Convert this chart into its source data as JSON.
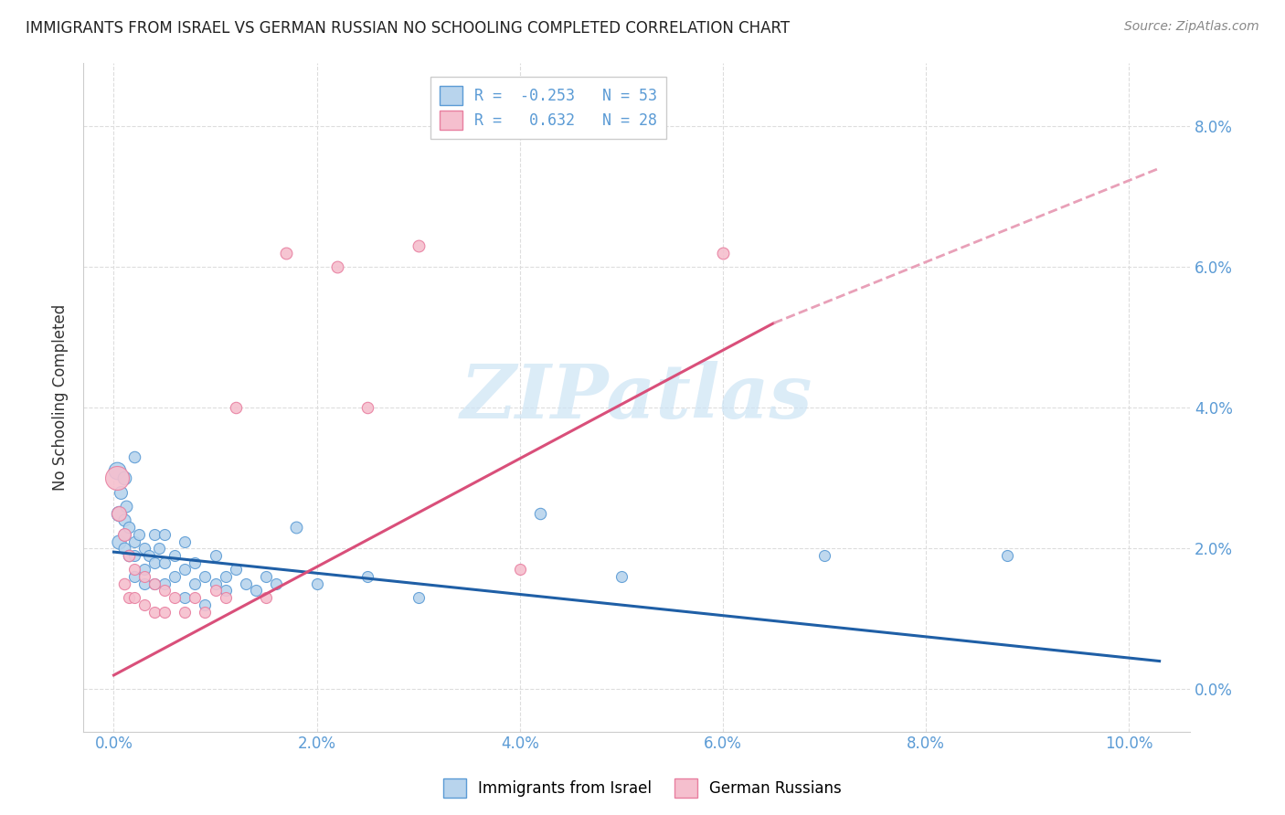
{
  "title": "IMMIGRANTS FROM ISRAEL VS GERMAN RUSSIAN NO SCHOOLING COMPLETED CORRELATION CHART",
  "source": "Source: ZipAtlas.com",
  "ylabel": "No Schooling Completed",
  "x_ticks": [
    0.0,
    0.02,
    0.04,
    0.06,
    0.08,
    0.1
  ],
  "x_tick_labels": [
    "0.0%",
    "2.0%",
    "4.0%",
    "6.0%",
    "8.0%",
    "10.0%"
  ],
  "y_ticks": [
    0.0,
    0.02,
    0.04,
    0.06,
    0.08
  ],
  "y_tick_labels_right": [
    "0.0%",
    "2.0%",
    "4.0%",
    "6.0%",
    "8.0%"
  ],
  "xlim": [
    -0.003,
    0.106
  ],
  "ylim": [
    -0.006,
    0.089
  ],
  "legend_r1": "R = -0.253",
  "legend_n1": "N = 53",
  "legend_r2": "R =  0.632",
  "legend_n2": "N = 28",
  "legend_label1": "Immigrants from Israel",
  "legend_label2": "German Russians",
  "blue_fill": "#b8d4ed",
  "blue_edge": "#5b9bd5",
  "pink_fill": "#f5bfce",
  "pink_edge": "#e87fa0",
  "blue_line_color": "#1f5fa6",
  "pink_line_color": "#d94f7a",
  "pink_dash_color": "#e8a0b8",
  "trendline_blue_x0": 0.0,
  "trendline_blue_y0": 0.0195,
  "trendline_blue_x1": 0.103,
  "trendline_blue_y1": 0.004,
  "trendline_pink_solid_x0": 0.0,
  "trendline_pink_solid_y0": 0.002,
  "trendline_pink_solid_x1": 0.065,
  "trendline_pink_solid_y1": 0.052,
  "trendline_pink_dash_x0": 0.065,
  "trendline_pink_dash_y0": 0.052,
  "trendline_pink_dash_x1": 0.103,
  "trendline_pink_dash_y1": 0.074,
  "blue_points": [
    [
      0.0003,
      0.031,
      180
    ],
    [
      0.0005,
      0.025,
      140
    ],
    [
      0.0005,
      0.021,
      120
    ],
    [
      0.0007,
      0.028,
      100
    ],
    [
      0.001,
      0.03,
      110
    ],
    [
      0.001,
      0.024,
      90
    ],
    [
      0.001,
      0.022,
      90
    ],
    [
      0.001,
      0.02,
      85
    ],
    [
      0.0012,
      0.026,
      85
    ],
    [
      0.0015,
      0.023,
      80
    ],
    [
      0.0015,
      0.019,
      80
    ],
    [
      0.002,
      0.033,
      80
    ],
    [
      0.002,
      0.021,
      75
    ],
    [
      0.002,
      0.019,
      75
    ],
    [
      0.002,
      0.016,
      75
    ],
    [
      0.0025,
      0.022,
      75
    ],
    [
      0.003,
      0.02,
      75
    ],
    [
      0.003,
      0.017,
      75
    ],
    [
      0.003,
      0.015,
      75
    ],
    [
      0.0035,
      0.019,
      75
    ],
    [
      0.004,
      0.022,
      75
    ],
    [
      0.004,
      0.018,
      75
    ],
    [
      0.004,
      0.015,
      75
    ],
    [
      0.0045,
      0.02,
      75
    ],
    [
      0.005,
      0.022,
      75
    ],
    [
      0.005,
      0.018,
      75
    ],
    [
      0.005,
      0.015,
      75
    ],
    [
      0.006,
      0.019,
      75
    ],
    [
      0.006,
      0.016,
      75
    ],
    [
      0.007,
      0.021,
      75
    ],
    [
      0.007,
      0.017,
      75
    ],
    [
      0.007,
      0.013,
      75
    ],
    [
      0.008,
      0.018,
      75
    ],
    [
      0.008,
      0.015,
      75
    ],
    [
      0.009,
      0.016,
      75
    ],
    [
      0.009,
      0.012,
      75
    ],
    [
      0.01,
      0.019,
      75
    ],
    [
      0.01,
      0.015,
      75
    ],
    [
      0.011,
      0.016,
      75
    ],
    [
      0.011,
      0.014,
      75
    ],
    [
      0.012,
      0.017,
      75
    ],
    [
      0.013,
      0.015,
      75
    ],
    [
      0.014,
      0.014,
      75
    ],
    [
      0.015,
      0.016,
      75
    ],
    [
      0.016,
      0.015,
      75
    ],
    [
      0.018,
      0.023,
      85
    ],
    [
      0.02,
      0.015,
      75
    ],
    [
      0.025,
      0.016,
      75
    ],
    [
      0.03,
      0.013,
      75
    ],
    [
      0.042,
      0.025,
      80
    ],
    [
      0.05,
      0.016,
      75
    ],
    [
      0.07,
      0.019,
      75
    ],
    [
      0.088,
      0.019,
      75
    ]
  ],
  "pink_points": [
    [
      0.0003,
      0.03,
      350
    ],
    [
      0.0005,
      0.025,
      130
    ],
    [
      0.001,
      0.022,
      100
    ],
    [
      0.001,
      0.015,
      80
    ],
    [
      0.0015,
      0.019,
      80
    ],
    [
      0.0015,
      0.013,
      75
    ],
    [
      0.002,
      0.017,
      75
    ],
    [
      0.002,
      0.013,
      75
    ],
    [
      0.003,
      0.016,
      75
    ],
    [
      0.003,
      0.012,
      75
    ],
    [
      0.004,
      0.015,
      75
    ],
    [
      0.004,
      0.011,
      75
    ],
    [
      0.005,
      0.014,
      75
    ],
    [
      0.005,
      0.011,
      75
    ],
    [
      0.006,
      0.013,
      75
    ],
    [
      0.007,
      0.011,
      75
    ],
    [
      0.008,
      0.013,
      75
    ],
    [
      0.009,
      0.011,
      75
    ],
    [
      0.01,
      0.014,
      75
    ],
    [
      0.011,
      0.013,
      75
    ],
    [
      0.012,
      0.04,
      80
    ],
    [
      0.015,
      0.013,
      75
    ],
    [
      0.017,
      0.062,
      85
    ],
    [
      0.022,
      0.06,
      85
    ],
    [
      0.025,
      0.04,
      80
    ],
    [
      0.03,
      0.063,
      85
    ],
    [
      0.04,
      0.017,
      75
    ],
    [
      0.06,
      0.062,
      85
    ]
  ],
  "watermark_text": "ZIPatlas",
  "watermark_color": "#cce4f5",
  "background_color": "#ffffff",
  "grid_color": "#dddddd",
  "title_color": "#222222",
  "axis_color": "#333333",
  "tick_color": "#5b9bd5"
}
